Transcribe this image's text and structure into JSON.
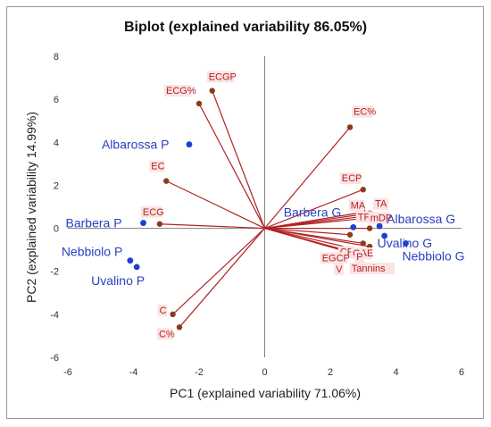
{
  "chart_data": {
    "type": "scatter",
    "title": "Biplot (explained variability 86.05%)",
    "xlabel": "PC1 (explained variability 71.06%)",
    "ylabel": "PC2 (explained variability 14.99%)",
    "xlim": [
      -6,
      6
    ],
    "ylim": [
      -6,
      8
    ],
    "x_ticks": [
      -6,
      -4,
      -2,
      0,
      2,
      4,
      6
    ],
    "y_ticks": [
      -6,
      -4,
      -2,
      0,
      2,
      4,
      6,
      8
    ],
    "grid": false,
    "colors": {
      "variables": "#b22222",
      "variable_points": "#8b3a1a",
      "observations": "#1f3fd0",
      "observation_text": "#2a3fbf",
      "label_bg": "#fbe3e3"
    },
    "variables": [
      {
        "name": "ECGP",
        "x": -1.6,
        "y": 6.4
      },
      {
        "name": "ECG%",
        "x": -2.0,
        "y": 5.8
      },
      {
        "name": "EC%",
        "x": 2.6,
        "y": 4.7
      },
      {
        "name": "EC",
        "x": -3.0,
        "y": 2.2
      },
      {
        "name": "ECP",
        "x": 3.0,
        "y": 1.8
      },
      {
        "name": "ECG",
        "x": -3.2,
        "y": 0.2
      },
      {
        "name": "MA",
        "x": 3.0,
        "y": 0.75
      },
      {
        "name": "TA",
        "x": 3.2,
        "y": 0.7
      },
      {
        "name": "TF",
        "x": 3.0,
        "y": 0.55
      },
      {
        "name": "mDP",
        "x": 3.3,
        "y": 0.5
      },
      {
        "name": "",
        "x": 3.2,
        "y": 0.0
      },
      {
        "name": "",
        "x": 2.6,
        "y": -0.3
      },
      {
        "name": "CP",
        "x": 3.0,
        "y": -0.7
      },
      {
        "name": "GAE",
        "x": 3.2,
        "y": -0.85
      },
      {
        "name": "P",
        "x": 3.15,
        "y": -1.1
      },
      {
        "name": "EGCP",
        "x": 2.7,
        "y": -1.15
      },
      {
        "name": "Tannins",
        "x": 3.0,
        "y": -1.3
      },
      {
        "name": "V",
        "x": 3.15,
        "y": -1.3
      },
      {
        "name": "C",
        "x": -2.8,
        "y": -4.0
      },
      {
        "name": "C%",
        "x": -2.6,
        "y": -4.6
      }
    ],
    "observations": [
      {
        "name": "Albarossa P",
        "x": -2.3,
        "y": 3.9
      },
      {
        "name": "Barbera P",
        "x": -3.7,
        "y": 0.25
      },
      {
        "name": "Nebbiolo P",
        "x": -4.1,
        "y": -1.5
      },
      {
        "name": "Uvalino P",
        "x": -3.9,
        "y": -1.8
      },
      {
        "name": "Barbera G",
        "x": 2.7,
        "y": 0.05
      },
      {
        "name": "Albarossa G",
        "x": 3.5,
        "y": 0.1
      },
      {
        "name": "Uvalino G",
        "x": 3.65,
        "y": -0.35
      },
      {
        "name": "Nebbiolo G",
        "x": 4.3,
        "y": -0.7
      }
    ]
  }
}
